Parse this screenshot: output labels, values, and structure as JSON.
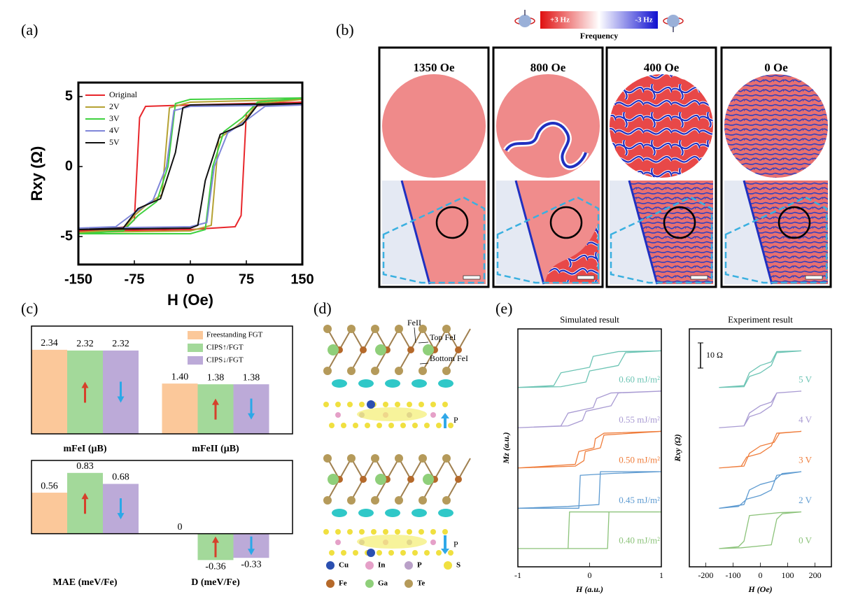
{
  "panel_labels": [
    "(a)",
    "(b)",
    "(c)",
    "(d)",
    "(e)"
  ],
  "panel_b": {
    "colorbar_max": "+3 Hz",
    "colorbar_min": "-3 Hz",
    "colorbar_label": "Frequency",
    "fields": [
      "1350 Oe",
      "800 Oe",
      "400 Oe",
      "0 Oe"
    ]
  },
  "panel_d": {
    "annotations": [
      "FeII",
      "Top FeI",
      "Bottom FeI"
    ],
    "polarization": [
      "P",
      "P"
    ],
    "atoms": [
      "Cu",
      "In",
      "P",
      "S",
      "Fe",
      "Ga",
      "Te"
    ]
  },
  "chart_data": [
    {
      "type": "line",
      "xlabel": "H (Oe)",
      "ylabel": "Rxy (Ω)",
      "xlim": [
        -150,
        150
      ],
      "xticks": [
        -150,
        -75,
        0,
        75,
        150
      ],
      "ylim": [
        -7,
        6
      ],
      "yticks": [
        -5,
        0,
        5
      ],
      "legend": "upper left",
      "series": [
        {
          "name": "Original",
          "color": "#e8262b",
          "x": [
            150,
            0,
            -60,
            -68,
            -75,
            -85,
            -150,
            0,
            60,
            68,
            75,
            85,
            150
          ],
          "values": [
            4.6,
            4.4,
            4.3,
            3.5,
            -3.8,
            -4.3,
            -4.6,
            -4.5,
            -4.3,
            -3.5,
            3.8,
            4.3,
            4.6
          ]
        },
        {
          "name": "2V",
          "color": "#b5a233",
          "x": [
            150,
            0,
            -28,
            -38,
            -60,
            -75,
            -90,
            -150,
            0,
            28,
            38,
            60,
            75,
            90,
            150
          ],
          "values": [
            4.8,
            4.6,
            4.2,
            -2,
            -2.8,
            -3.5,
            -4.5,
            -4.7,
            -4.6,
            -4.2,
            2,
            2.8,
            3.5,
            4.5,
            4.8
          ]
        },
        {
          "name": "3V",
          "color": "#3fd13f",
          "x": [
            150,
            0,
            -20,
            -30,
            -45,
            -70,
            -90,
            -150,
            0,
            20,
            30,
            45,
            70,
            90,
            150
          ],
          "values": [
            4.9,
            4.8,
            4.5,
            0,
            -2.5,
            -3.5,
            -4.6,
            -4.8,
            -4.8,
            -4.5,
            0,
            2.5,
            3.5,
            4.6,
            4.9
          ]
        },
        {
          "name": "4V",
          "color": "#7f86d9",
          "x": [
            150,
            0,
            -22,
            -32,
            -50,
            -75,
            -100,
            -150,
            0,
            22,
            32,
            50,
            75,
            100,
            150
          ],
          "values": [
            4.4,
            4.3,
            4,
            0,
            -2.4,
            -3.3,
            -4.3,
            -4.4,
            -4.3,
            -4,
            0,
            2.4,
            3.3,
            4.3,
            4.4
          ]
        },
        {
          "name": "5V",
          "color": "#111111",
          "x": [
            150,
            0,
            -10,
            -20,
            -40,
            -70,
            -90,
            -150,
            0,
            10,
            20,
            40,
            70,
            90,
            150
          ],
          "values": [
            4.5,
            4.4,
            4.2,
            1,
            -2.3,
            -3,
            -4.4,
            -4.5,
            -4.4,
            -4.2,
            -1,
            2.3,
            3,
            4.4,
            4.5
          ]
        }
      ]
    },
    {
      "type": "bar",
      "categories": [
        "mFeI (μB)",
        "mFeII (μB)"
      ],
      "ylim": [
        0,
        3
      ],
      "legend": "upper right",
      "series": [
        {
          "name": "Freestanding FGT",
          "color": "#fbc89a",
          "values": [
            2.34,
            1.4
          ],
          "value_labels": [
            "2.34",
            "1.40"
          ]
        },
        {
          "name": "CIPS↑/FGT",
          "color": "#a3d99a",
          "values": [
            2.32,
            1.38
          ],
          "value_labels": [
            "2.32",
            "1.38"
          ]
        },
        {
          "name": "CIPS↓/FGT",
          "color": "#bcaad8",
          "values": [
            2.32,
            1.38
          ],
          "value_labels": [
            "2.32",
            "1.38"
          ]
        }
      ]
    },
    {
      "type": "bar",
      "categories": [
        "MAE (meV/Fe)",
        "D (meV/Fe)"
      ],
      "ylim": [
        -0.5,
        1.0
      ],
      "series": [
        {
          "color": "#fbc89a",
          "values": [
            0.56,
            0
          ]
        },
        {
          "color": "#a3d99a",
          "values": [
            0.83,
            -0.36
          ]
        },
        {
          "color": "#bcaad8",
          "values": [
            0.68,
            -0.33
          ]
        }
      ]
    },
    {
      "type": "line",
      "title": "Simulated result",
      "xlabel": "H (a.u.)",
      "ylabel": "Mz (a.u.)",
      "xlim": [
        -1,
        1
      ],
      "xticks": [
        -1,
        0,
        1
      ],
      "ylim": [
        0,
        6.5
      ],
      "series": [
        {
          "name": "0.60 mJ/m²",
          "color": "#6cc4b4",
          "x": [
            1,
            0.4,
            0.05,
            0,
            -0.4,
            -0.5,
            -1,
            -0.4,
            -0.05,
            0,
            0.4,
            0.5,
            1
          ],
          "values": [
            5.9,
            5.88,
            5.75,
            5.45,
            5.3,
            4.95,
            4.9,
            4.92,
            5.05,
            5.35,
            5.5,
            5.85,
            5.9
          ]
        },
        {
          "name": "0.55 mJ/m²",
          "color": "#a99bd3",
          "x": [
            1,
            0.3,
            0.1,
            0.05,
            -0.3,
            -0.4,
            -1,
            -0.3,
            -0.1,
            -0.05,
            0.3,
            0.4,
            1
          ],
          "values": [
            4.8,
            4.75,
            4.6,
            4.35,
            4.2,
            3.85,
            3.8,
            3.85,
            4.0,
            4.25,
            4.4,
            4.75,
            4.8
          ]
        },
        {
          "name": "0.50 mJ/m²",
          "color": "#ef7d3c",
          "x": [
            1,
            0.2,
            0.08,
            0.06,
            -0.15,
            -0.2,
            -1,
            -0.2,
            -0.08,
            -0.06,
            0.15,
            0.2,
            1
          ],
          "values": [
            3.7,
            3.65,
            3.5,
            3.25,
            3.15,
            2.8,
            2.7,
            2.75,
            2.9,
            3.15,
            3.25,
            3.6,
            3.7
          ]
        },
        {
          "name": "0.45 mJ/m²",
          "color": "#5e9bd1",
          "x": [
            1,
            0.3,
            -0.13,
            -0.15,
            -1,
            -0.3,
            0.13,
            0.15,
            1
          ],
          "values": [
            2.6,
            2.55,
            2.5,
            1.6,
            1.6,
            1.65,
            1.7,
            2.6,
            2.6
          ]
        },
        {
          "name": "0.40 mJ/m²",
          "color": "#8cc37a",
          "x": [
            1,
            -0.28,
            -0.3,
            -1,
            0.25,
            0.27,
            1
          ],
          "values": [
            1.5,
            1.5,
            0.5,
            0.5,
            0.5,
            1.5,
            1.5
          ]
        }
      ]
    },
    {
      "type": "line",
      "title": "Experiment result",
      "xlabel": "H (Oe)",
      "ylabel": "Rxy (Ω)",
      "scale_bar": "10 Ω",
      "xlim": [
        -260,
        260
      ],
      "xticks": [
        -200,
        -100,
        0,
        100,
        200
      ],
      "ylim": [
        0,
        6.5
      ],
      "series": [
        {
          "name": "5 V",
          "color": "#6cc4b4",
          "x": [
            150,
            60,
            40,
            0,
            -40,
            -60,
            -150,
            -60,
            -40,
            0,
            40,
            60,
            150
          ],
          "values": [
            5.9,
            5.88,
            5.6,
            5.5,
            5.3,
            4.95,
            4.9,
            4.92,
            5.2,
            5.3,
            5.5,
            5.85,
            5.9
          ]
        },
        {
          "name": "4 V",
          "color": "#a99bd3",
          "x": [
            150,
            60,
            40,
            0,
            -40,
            -60,
            -150,
            -60,
            -40,
            0,
            40,
            60,
            150
          ],
          "values": [
            4.8,
            4.75,
            4.5,
            4.4,
            4.2,
            3.85,
            3.8,
            3.85,
            4.1,
            4.2,
            4.4,
            4.75,
            4.8
          ]
        },
        {
          "name": "3 V",
          "color": "#ef7d3c",
          "x": [
            150,
            70,
            50,
            0,
            -40,
            -60,
            -150,
            -70,
            -50,
            0,
            40,
            60,
            150
          ],
          "values": [
            3.7,
            3.65,
            3.4,
            3.3,
            3.1,
            2.75,
            2.7,
            2.75,
            3.0,
            3.1,
            3.3,
            3.65,
            3.7
          ]
        },
        {
          "name": "2 V",
          "color": "#5e9bd1",
          "x": [
            150,
            80,
            50,
            0,
            -40,
            -60,
            -150,
            -80,
            -50,
            0,
            40,
            60,
            150
          ],
          "values": [
            2.6,
            2.55,
            2.35,
            2.25,
            2.1,
            1.7,
            1.6,
            1.65,
            1.85,
            1.95,
            2.1,
            2.5,
            2.6
          ]
        },
        {
          "name": "0 V",
          "color": "#8cc37a",
          "x": [
            150,
            70,
            -40,
            -60,
            -80,
            -150,
            -70,
            40,
            60,
            80,
            150
          ],
          "values": [
            1.5,
            1.48,
            1.4,
            0.7,
            0.55,
            0.5,
            0.52,
            0.6,
            1.3,
            1.45,
            1.5
          ]
        }
      ]
    }
  ]
}
